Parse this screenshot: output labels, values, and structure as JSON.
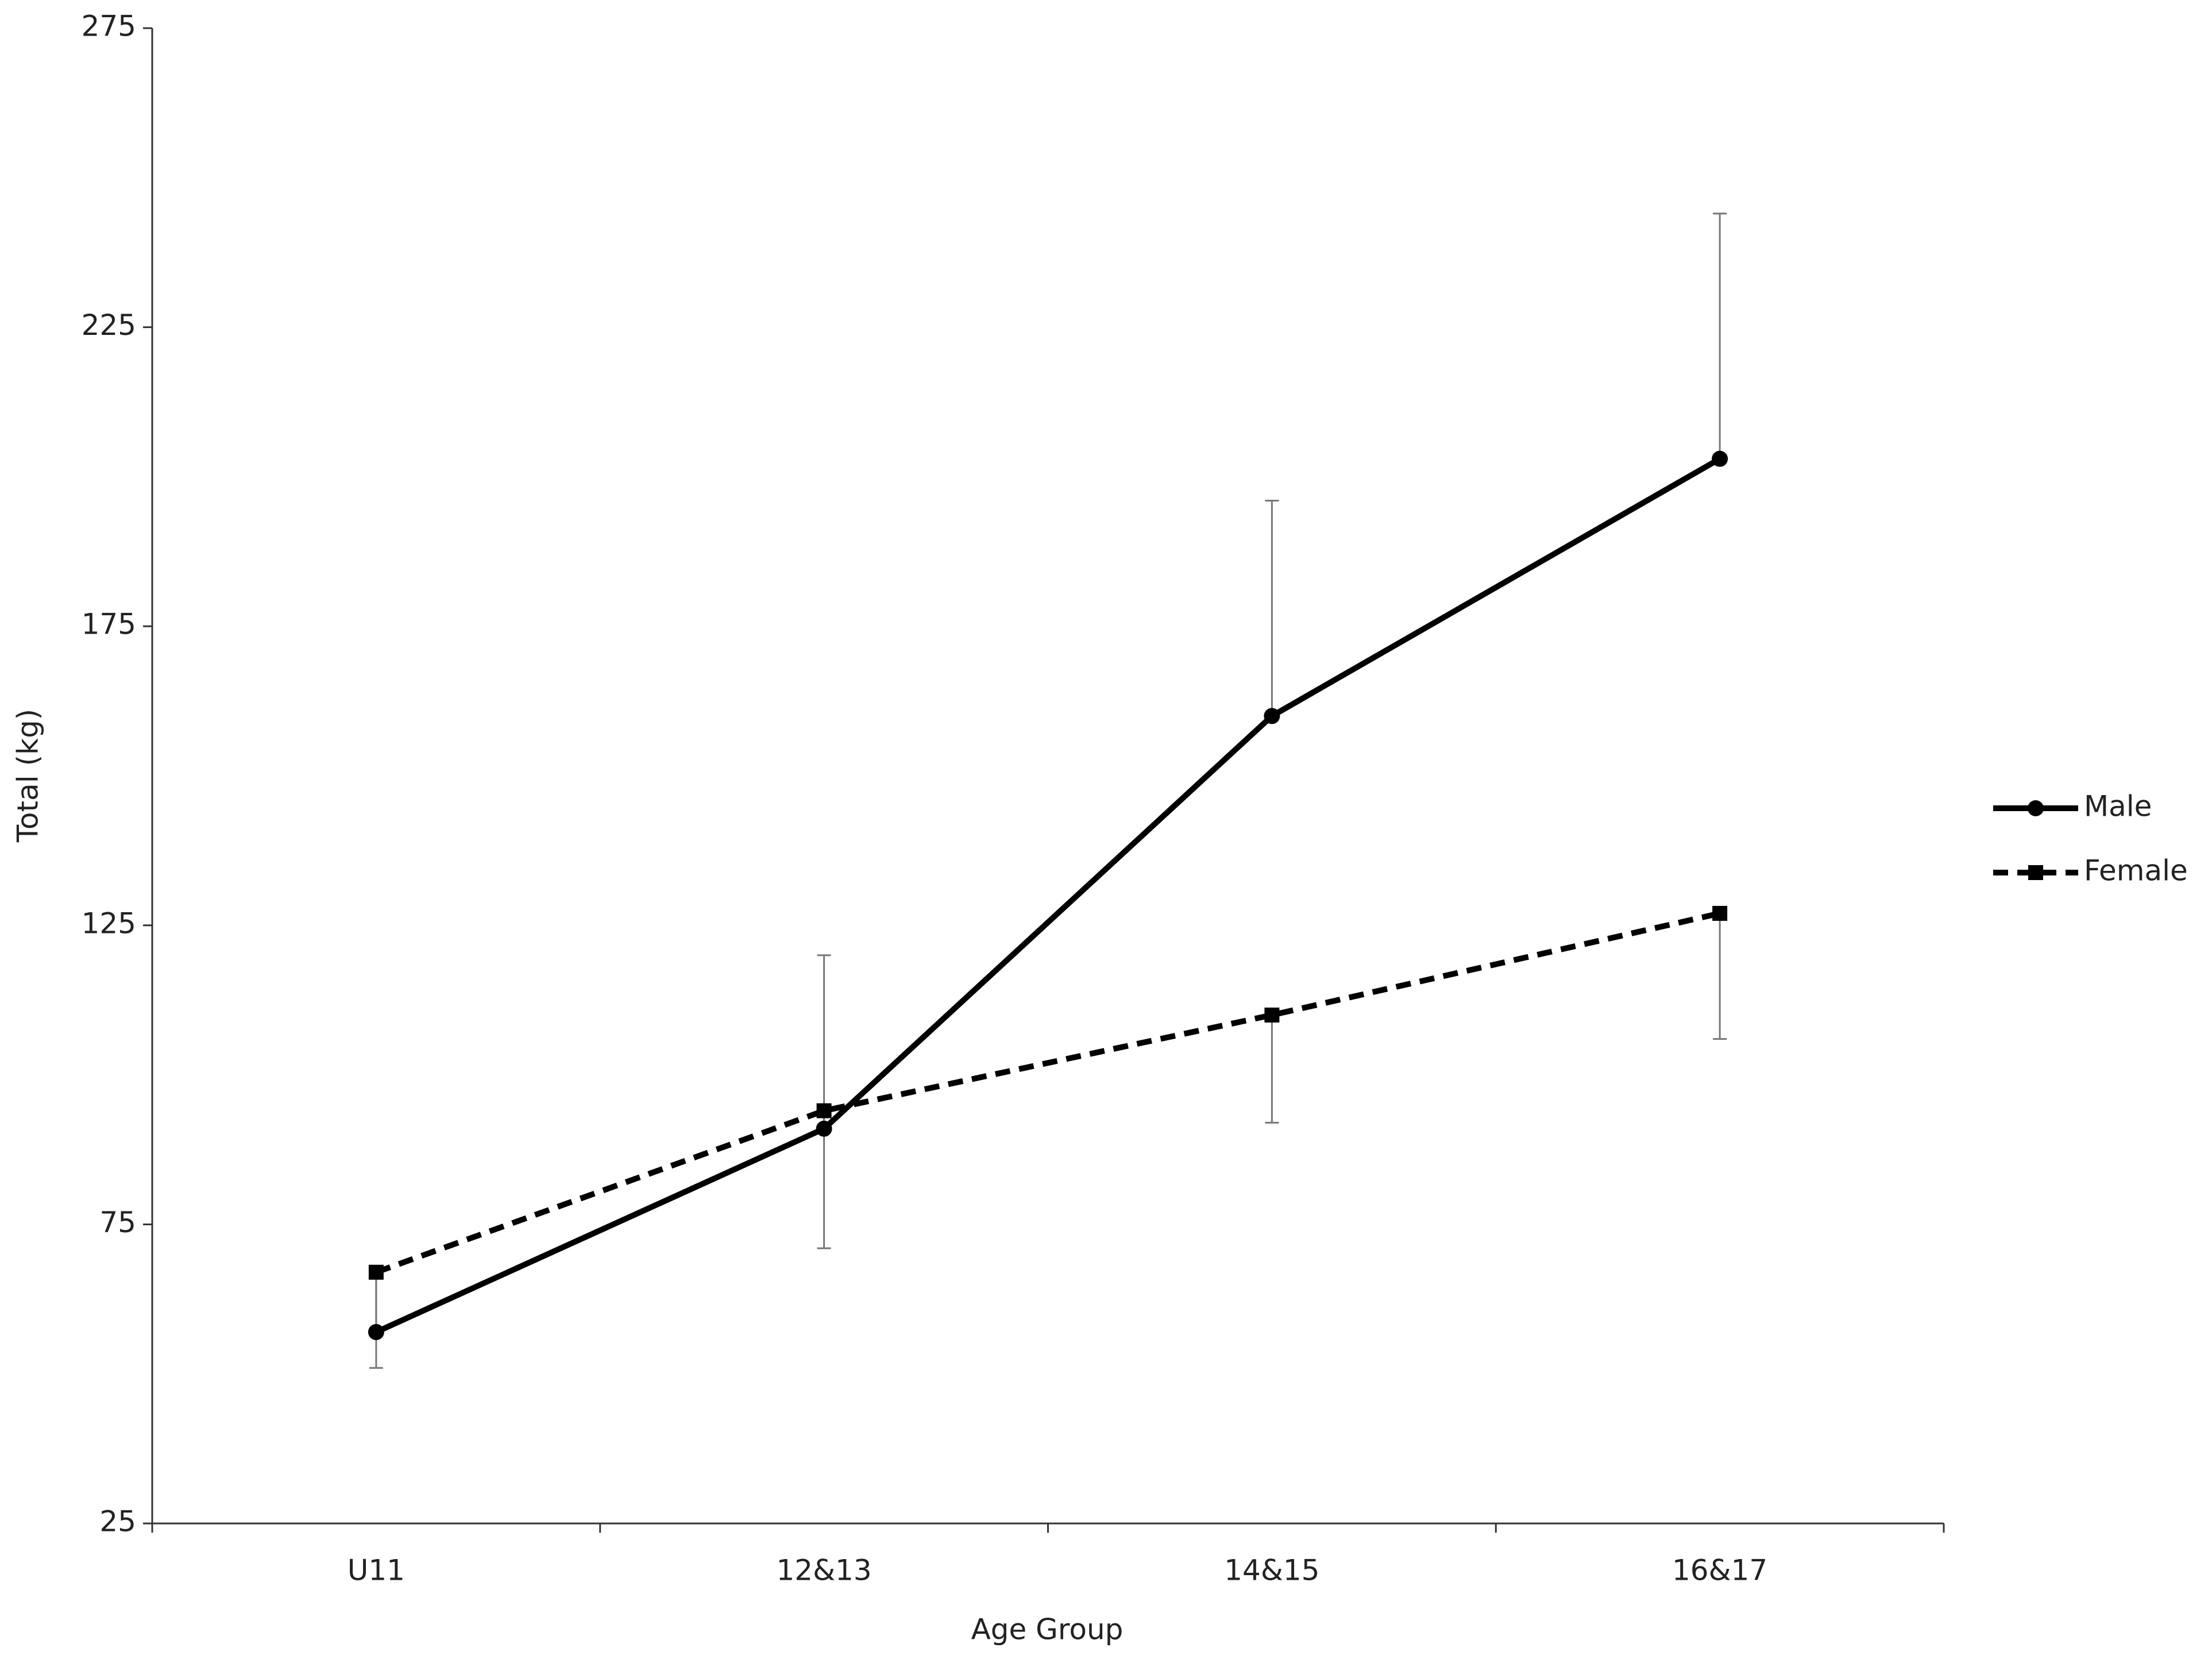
{
  "chart_data": {
    "type": "line",
    "xlabel": "Age Group",
    "ylabel": "Total (kg)",
    "categories": [
      "U11",
      "12&13",
      "14&15",
      "16&17"
    ],
    "series": [
      {
        "name": "Male",
        "color": "#000000",
        "dash": "solid",
        "marker": "circle",
        "error_direction": "plus",
        "values": [
          57,
          91,
          160,
          203
        ],
        "errors": [
          9,
          29,
          36,
          41
        ]
      },
      {
        "name": "Female",
        "color": "#000000",
        "dash": "dashed",
        "marker": "square",
        "error_direction": "minus",
        "values": [
          67,
          94,
          110,
          127
        ],
        "errors": [
          16,
          23,
          18,
          21
        ]
      }
    ],
    "ylim": [
      25,
      275
    ],
    "yticks": [
      25,
      75,
      125,
      175,
      225,
      275
    ],
    "grid": false,
    "legend": "right"
  }
}
